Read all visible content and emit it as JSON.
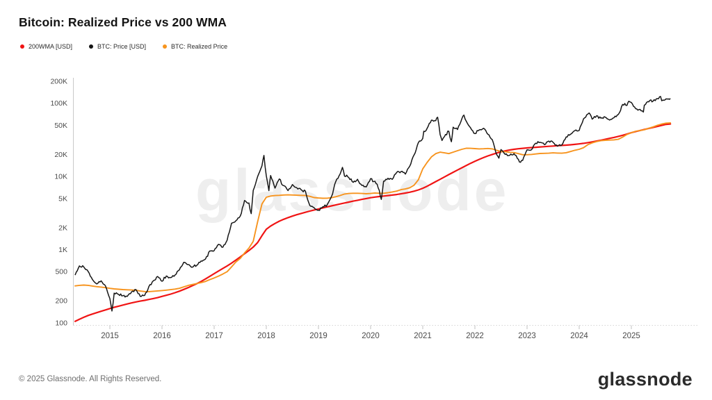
{
  "title": "Bitcoin: Realized Price vs 200 WMA",
  "legend": [
    {
      "label": "200WMA [USD]",
      "color": "#f01414",
      "icon": "red-dot-icon"
    },
    {
      "label": "BTC: Price [USD]",
      "color": "#141414",
      "icon": "black-dot-icon"
    },
    {
      "label": "BTC: Realized Price",
      "color": "#f7941e",
      "icon": "orange-dot-icon"
    }
  ],
  "watermark": "glassnode",
  "footer": {
    "copyright": "© 2025 Glassnode. All Rights Reserved.",
    "brand": "glassnode"
  },
  "chart_data": {
    "type": "line",
    "log_scale_y": true,
    "title": "Bitcoin: Realized Price vs 200 WMA",
    "xlabel": "",
    "ylabel": "",
    "grid": false,
    "legend_position": "top-left",
    "x_range": [
      2014.33,
      2025.75
    ],
    "y_range_usd": [
      100,
      200000
    ],
    "x_ticks": [
      2015,
      2016,
      2017,
      2018,
      2019,
      2020,
      2021,
      2022,
      2023,
      2024,
      2025
    ],
    "y_ticks": [
      {
        "label": "200K",
        "value": 200000
      },
      {
        "label": "100K",
        "value": 100000
      },
      {
        "label": "50K",
        "value": 50000
      },
      {
        "label": "20K",
        "value": 20000
      },
      {
        "label": "10K",
        "value": 10000
      },
      {
        "label": "5K",
        "value": 5000
      },
      {
        "label": "2K",
        "value": 2000
      },
      {
        "label": "1K",
        "value": 1000
      },
      {
        "label": "500",
        "value": 500
      },
      {
        "label": "200",
        "value": 200
      },
      {
        "label": "100",
        "value": 100
      }
    ],
    "series_start_year": 2014.3333,
    "series_step_years": 0.083333,
    "series": [
      {
        "name": "200WMA [USD]",
        "color": "#f01414",
        "style": "smooth",
        "width": 2.2,
        "values": [
          105,
          112,
          119,
          126,
          132,
          138,
          144,
          150,
          157,
          163,
          169,
          175,
          181,
          187,
          193,
          198,
          203,
          209,
          215,
          221,
          230,
          238,
          247,
          258,
          271,
          286,
          303,
          322,
          343,
          368,
          398,
          432,
          470,
          510,
          553,
          600,
          655,
          720,
          795,
          880,
          975,
          1085,
          1250,
          1550,
          1900,
          2100,
          2280,
          2450,
          2600,
          2740,
          2870,
          3000,
          3120,
          3240,
          3360,
          3480,
          3600,
          3720,
          3840,
          3960,
          4080,
          4210,
          4340,
          4470,
          4600,
          4730,
          4860,
          4990,
          5120,
          5230,
          5320,
          5400,
          5480,
          5570,
          5670,
          5790,
          5930,
          6090,
          6290,
          6550,
          6900,
          7350,
          7900,
          8500,
          9150,
          9850,
          10600,
          11400,
          12250,
          13150,
          14100,
          15100,
          16100,
          17100,
          18100,
          19100,
          20000,
          20900,
          21700,
          22400,
          23000,
          23500,
          23900,
          24250,
          24550,
          24800,
          25050,
          25300,
          25550,
          25800,
          26050,
          26300,
          26550,
          26800,
          27100,
          27450,
          27850,
          28350,
          28950,
          29650,
          30450,
          31300,
          32200,
          33150,
          34150,
          35250,
          36500,
          38000,
          39600,
          41100,
          42500,
          43900,
          45300,
          46800,
          48300,
          49900,
          51500,
          52200
        ]
      },
      {
        "name": "BTC: Realized Price",
        "color": "#f7941e",
        "style": "smooth",
        "width": 1.9,
        "values": [
          320,
          325,
          328,
          325,
          318,
          312,
          308,
          303,
          296,
          291,
          288,
          285,
          283,
          281,
          279,
          272,
          268,
          267,
          270,
          273,
          276,
          280,
          284,
          289,
          296,
          310,
          324,
          334,
          344,
          355,
          368,
          390,
          410,
          435,
          465,
          500,
          580,
          680,
          760,
          900,
          1050,
          1300,
          2400,
          4200,
          5200,
          5400,
          5480,
          5520,
          5580,
          5600,
          5580,
          5550,
          5520,
          5500,
          5350,
          5150,
          5080,
          5040,
          5050,
          5120,
          5280,
          5500,
          5750,
          5850,
          5900,
          5900,
          5850,
          5800,
          5850,
          5950,
          5900,
          5900,
          6000,
          6150,
          6300,
          6600,
          6750,
          7000,
          7600,
          9000,
          12700,
          15500,
          18500,
          20500,
          21500,
          21000,
          20500,
          21500,
          22500,
          23500,
          24300,
          24200,
          24000,
          23800,
          23900,
          24100,
          23800,
          22800,
          21900,
          21700,
          21400,
          21200,
          20500,
          19800,
          19800,
          20000,
          20300,
          20600,
          20700,
          20800,
          21000,
          20900,
          20800,
          21100,
          21900,
          22800,
          23500,
          24700,
          27200,
          28800,
          30000,
          30800,
          31200,
          31400,
          31600,
          32200,
          34500,
          37500,
          39500,
          41500,
          42500,
          43500,
          45500,
          47500,
          50000,
          52000,
          53500,
          54000
        ]
      },
      {
        "name": "BTC: Price [USD]",
        "color": "#151515",
        "style": "jagged",
        "width": 1.5,
        "values": [
          450,
          600,
          580,
          505,
          390,
          340,
          375,
          320,
          215,
          255,
          245,
          235,
          230,
          265,
          285,
          230,
          237,
          315,
          375,
          430,
          370,
          437,
          415,
          450,
          530,
          670,
          625,
          575,
          610,
          700,
          745,
          960,
          970,
          1180,
          1080,
          1350,
          2300,
          2480,
          2875,
          4700,
          4340,
          6450,
          9950,
          13900,
          10200,
          10300,
          6930,
          9240,
          7500,
          6400,
          7750,
          7030,
          6600,
          6300,
          4020,
          3740,
          3460,
          3850,
          4100,
          5320,
          8560,
          10820,
          10080,
          9630,
          8300,
          9150,
          7550,
          7190,
          9350,
          8600,
          6440,
          8620,
          9450,
          9140,
          11350,
          11650,
          10780,
          13800,
          19700,
          29000,
          33100,
          45200,
          58800,
          57750,
          37300,
          35040,
          41500,
          47150,
          43800,
          61300,
          57000,
          46200,
          38480,
          43200,
          45540,
          37650,
          31800,
          19985,
          23300,
          20050,
          19430,
          20500,
          17165,
          16550,
          23130,
          23140,
          28480,
          29250,
          27220,
          30480,
          29230,
          25930,
          26970,
          34670,
          37720,
          42270,
          42580,
          61200,
          71330,
          60640,
          67530,
          62680,
          64620,
          58970,
          63330,
          70220,
          96450,
          93430,
          102400,
          84350,
          82550,
          94210,
          104600,
          107100,
          115800,
          108200,
          115000,
          116000
        ]
      }
    ],
    "btc_intra_month_extremes": [
      [
        2015.04,
        145
      ],
      [
        2017.71,
        3100
      ],
      [
        2017.955,
        19400
      ],
      [
        2018.05,
        6400
      ],
      [
        2019.46,
        13300
      ],
      [
        2020.205,
        4850
      ],
      [
        2021.02,
        41500
      ],
      [
        2021.285,
        64400
      ],
      [
        2021.37,
        31000
      ],
      [
        2021.55,
        29800
      ],
      [
        2021.79,
        69000
      ],
      [
        2022.46,
        17800
      ],
      [
        2022.875,
        15600
      ],
      [
        2024.19,
        73600
      ],
      [
        2024.95,
        106500
      ],
      [
        2025.23,
        76000
      ],
      [
        2025.56,
        123800
      ]
    ]
  }
}
